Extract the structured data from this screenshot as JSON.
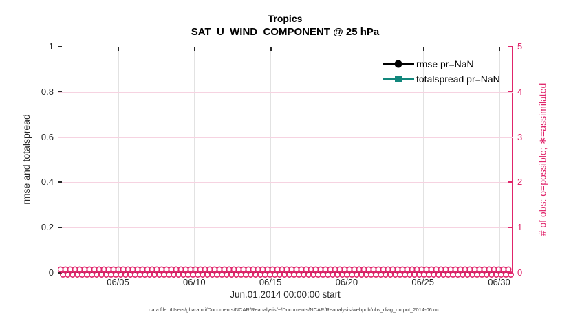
{
  "accent_colors": {
    "pink": "#e0256b",
    "pink_grid": "#f6d3e1",
    "gray_grid": "#e2e2e2",
    "teal": "#12877c",
    "black": "#000000"
  },
  "chart_data": {
    "type": "line",
    "title": "Tropics",
    "subtitle": "SAT_U_WIND_COMPONENT @ 25 hPa",
    "xlabel": "Jun.01,2014 00:00:00 start",
    "ylabel_left": "rmse and totalspread",
    "ylabel_right": "# of obs: o=possible; ∗=assimilated",
    "x_ticks": [
      "06/05",
      "06/10",
      "06/15",
      "06/20",
      "06/25",
      "06/30"
    ],
    "x_range_note": "daily points from 06/01 to 06/30, 2014",
    "y_left_ticks": [
      "0",
      "0.2",
      "0.4",
      "0.6",
      "0.8",
      "1"
    ],
    "y_right_ticks": [
      "0",
      "1",
      "2",
      "3",
      "4",
      "5"
    ],
    "ylim_left": [
      0,
      1
    ],
    "ylim_right": [
      0,
      5
    ],
    "grid": "on",
    "legend_position": "upper-right-inside",
    "legend": [
      {
        "label": "rmse pr=NaN",
        "color": "#000000",
        "marker": "circle"
      },
      {
        "label": "totalspread pr=NaN",
        "color": "#12877c",
        "marker": "square"
      }
    ],
    "series": [
      {
        "name": "rmse",
        "axis": "left",
        "values": "NaN (no curve plotted)"
      },
      {
        "name": "totalspread",
        "axis": "left",
        "values": "NaN (no curve plotted)"
      },
      {
        "name": "obs possible (o markers)",
        "axis": "right",
        "constant_value": 0
      },
      {
        "name": "obs assimilated (∗ markers)",
        "axis": "right",
        "constant_value": 0
      }
    ],
    "caption": "data file: /Users/gharamti/Documents/NCAR/Reanalysis/~/Documents/NCAR/Reanalysis/webpub/obs_diag_output_2014-06.nc"
  }
}
